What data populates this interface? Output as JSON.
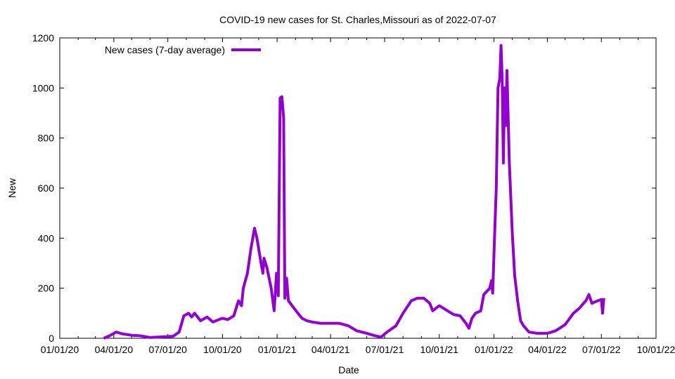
{
  "chart_data": {
    "type": "line",
    "title": "COVID-19 new cases for St. Charles,Missouri as of 2022-07-07",
    "xlabel": "Date",
    "ylabel": "New",
    "xlim": [
      "2020-01-01",
      "2022-10-01"
    ],
    "ylim": [
      0,
      1200
    ],
    "x_ticks": [
      "01/01/20",
      "04/01/20",
      "07/01/20",
      "10/01/20",
      "01/01/21",
      "04/01/21",
      "07/01/21",
      "10/01/21",
      "01/01/22",
      "04/01/22",
      "07/01/22",
      "10/01/22"
    ],
    "x_tick_dates": [
      "2020-01-01",
      "2020-04-01",
      "2020-07-01",
      "2020-10-01",
      "2021-01-01",
      "2021-04-01",
      "2021-07-01",
      "2021-10-01",
      "2022-01-01",
      "2022-04-01",
      "2022-07-01",
      "2022-10-01"
    ],
    "y_ticks": [
      0,
      200,
      400,
      600,
      800,
      1000,
      1200
    ],
    "grid": false,
    "legend_position": "top-left",
    "series": [
      {
        "name": "New cases (7-day average)",
        "color": "#9400d3",
        "points": [
          [
            "2020-03-15",
            0
          ],
          [
            "2020-03-25",
            10
          ],
          [
            "2020-04-05",
            25
          ],
          [
            "2020-04-15",
            18
          ],
          [
            "2020-05-01",
            12
          ],
          [
            "2020-05-15",
            10
          ],
          [
            "2020-06-01",
            3
          ],
          [
            "2020-06-15",
            5
          ],
          [
            "2020-07-01",
            7
          ],
          [
            "2020-07-10",
            8
          ],
          [
            "2020-07-20",
            25
          ],
          [
            "2020-07-28",
            90
          ],
          [
            "2020-08-05",
            100
          ],
          [
            "2020-08-10",
            85
          ],
          [
            "2020-08-15",
            100
          ],
          [
            "2020-08-25",
            70
          ],
          [
            "2020-09-05",
            85
          ],
          [
            "2020-09-15",
            65
          ],
          [
            "2020-09-25",
            75
          ],
          [
            "2020-10-01",
            80
          ],
          [
            "2020-10-10",
            75
          ],
          [
            "2020-10-20",
            90
          ],
          [
            "2020-10-28",
            150
          ],
          [
            "2020-11-02",
            130
          ],
          [
            "2020-11-05",
            200
          ],
          [
            "2020-11-12",
            260
          ],
          [
            "2020-11-18",
            360
          ],
          [
            "2020-11-24",
            440
          ],
          [
            "2020-11-28",
            400
          ],
          [
            "2020-12-05",
            300
          ],
          [
            "2020-12-08",
            260
          ],
          [
            "2020-12-10",
            320
          ],
          [
            "2020-12-15",
            280
          ],
          [
            "2020-12-22",
            200
          ],
          [
            "2020-12-27",
            110
          ],
          [
            "2020-12-31",
            260
          ],
          [
            "2021-01-03",
            170
          ],
          [
            "2021-01-06",
            960
          ],
          [
            "2021-01-09",
            965
          ],
          [
            "2021-01-12",
            880
          ],
          [
            "2021-01-14",
            160
          ],
          [
            "2021-01-17",
            240
          ],
          [
            "2021-01-20",
            150
          ],
          [
            "2021-01-28",
            125
          ],
          [
            "2021-02-05",
            100
          ],
          [
            "2021-02-12",
            80
          ],
          [
            "2021-02-20",
            70
          ],
          [
            "2021-03-01",
            65
          ],
          [
            "2021-03-15",
            60
          ],
          [
            "2021-04-01",
            60
          ],
          [
            "2021-04-15",
            60
          ],
          [
            "2021-05-01",
            50
          ],
          [
            "2021-05-15",
            30
          ],
          [
            "2021-06-01",
            20
          ],
          [
            "2021-06-15",
            10
          ],
          [
            "2021-06-25",
            5
          ],
          [
            "2021-07-05",
            25
          ],
          [
            "2021-07-20",
            50
          ],
          [
            "2021-08-01",
            100
          ],
          [
            "2021-08-15",
            150
          ],
          [
            "2021-08-25",
            160
          ],
          [
            "2021-09-05",
            160
          ],
          [
            "2021-09-15",
            140
          ],
          [
            "2021-09-20",
            110
          ],
          [
            "2021-10-01",
            130
          ],
          [
            "2021-10-15",
            110
          ],
          [
            "2021-10-25",
            95
          ],
          [
            "2021-11-05",
            90
          ],
          [
            "2021-11-15",
            60
          ],
          [
            "2021-11-20",
            40
          ],
          [
            "2021-11-25",
            80
          ],
          [
            "2021-12-01",
            100
          ],
          [
            "2021-12-10",
            110
          ],
          [
            "2021-12-15",
            175
          ],
          [
            "2021-12-25",
            200
          ],
          [
            "2021-12-28",
            230
          ],
          [
            "2021-12-30",
            180
          ],
          [
            "2022-01-02",
            400
          ],
          [
            "2022-01-05",
            600
          ],
          [
            "2022-01-08",
            1000
          ],
          [
            "2022-01-11",
            1040
          ],
          [
            "2022-01-13",
            1170
          ],
          [
            "2022-01-15",
            1040
          ],
          [
            "2022-01-17",
            700
          ],
          [
            "2022-01-19",
            1000
          ],
          [
            "2022-01-21",
            850
          ],
          [
            "2022-01-23",
            1070
          ],
          [
            "2022-01-27",
            700
          ],
          [
            "2022-02-01",
            420
          ],
          [
            "2022-02-05",
            250
          ],
          [
            "2022-02-10",
            150
          ],
          [
            "2022-02-15",
            70
          ],
          [
            "2022-02-20",
            50
          ],
          [
            "2022-03-01",
            25
          ],
          [
            "2022-03-15",
            20
          ],
          [
            "2022-04-01",
            20
          ],
          [
            "2022-04-15",
            30
          ],
          [
            "2022-05-01",
            55
          ],
          [
            "2022-05-15",
            100
          ],
          [
            "2022-05-25",
            120
          ],
          [
            "2022-06-01",
            140
          ],
          [
            "2022-06-05",
            150
          ],
          [
            "2022-06-10",
            175
          ],
          [
            "2022-06-15",
            140
          ],
          [
            "2022-06-25",
            150
          ],
          [
            "2022-07-01",
            155
          ],
          [
            "2022-07-03",
            100
          ],
          [
            "2022-07-05",
            160
          ]
        ]
      }
    ]
  }
}
